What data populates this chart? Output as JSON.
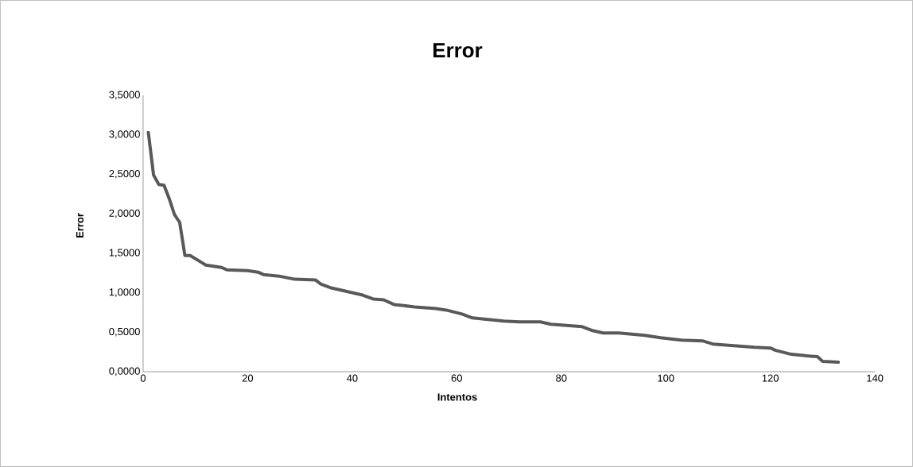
{
  "chart_data": {
    "type": "line",
    "title": "Error",
    "xlabel": "Intentos",
    "ylabel": "Error",
    "x": [
      1,
      2,
      3,
      4,
      5,
      6,
      7,
      8,
      9,
      12,
      15,
      16,
      20,
      22,
      23,
      26,
      29,
      33,
      34,
      36,
      38,
      40,
      42,
      44,
      46,
      48,
      52,
      56,
      58,
      61,
      63,
      66,
      69,
      72,
      76,
      78,
      82,
      84,
      86,
      88,
      91,
      96,
      99,
      103,
      107,
      109,
      113,
      117,
      120,
      121,
      124,
      127,
      129,
      130,
      133
    ],
    "series": [
      {
        "color": "#595959",
        "values": [
          3.03,
          2.49,
          2.37,
          2.36,
          2.19,
          1.99,
          1.89,
          1.47,
          1.47,
          1.35,
          1.32,
          1.29,
          1.28,
          1.26,
          1.23,
          1.21,
          1.17,
          1.16,
          1.11,
          1.06,
          1.03,
          1.0,
          0.97,
          0.92,
          0.91,
          0.85,
          0.82,
          0.8,
          0.78,
          0.73,
          0.68,
          0.66,
          0.64,
          0.63,
          0.63,
          0.6,
          0.58,
          0.57,
          0.52,
          0.49,
          0.49,
          0.46,
          0.43,
          0.4,
          0.39,
          0.35,
          0.33,
          0.31,
          0.3,
          0.27,
          0.22,
          0.2,
          0.19,
          0.13,
          0.12
        ]
      }
    ],
    "xlim": [
      0,
      140
    ],
    "ylim": [
      0,
      3.5
    ],
    "xticks": [
      0,
      20,
      40,
      60,
      80,
      100,
      120,
      140
    ],
    "yticks": [
      {
        "value": 0,
        "label": "0,0000"
      },
      {
        "value": 0.5,
        "label": "0,5000"
      },
      {
        "value": 1,
        "label": "1,0000"
      },
      {
        "value": 1.5,
        "label": "1,5000"
      },
      {
        "value": 2,
        "label": "2,0000"
      },
      {
        "value": 2.5,
        "label": "2,5000"
      },
      {
        "value": 3,
        "label": "3,0000"
      },
      {
        "value": 3.5,
        "label": "3,5000"
      }
    ],
    "grid": false,
    "marker": "none",
    "line_style": "solid"
  }
}
